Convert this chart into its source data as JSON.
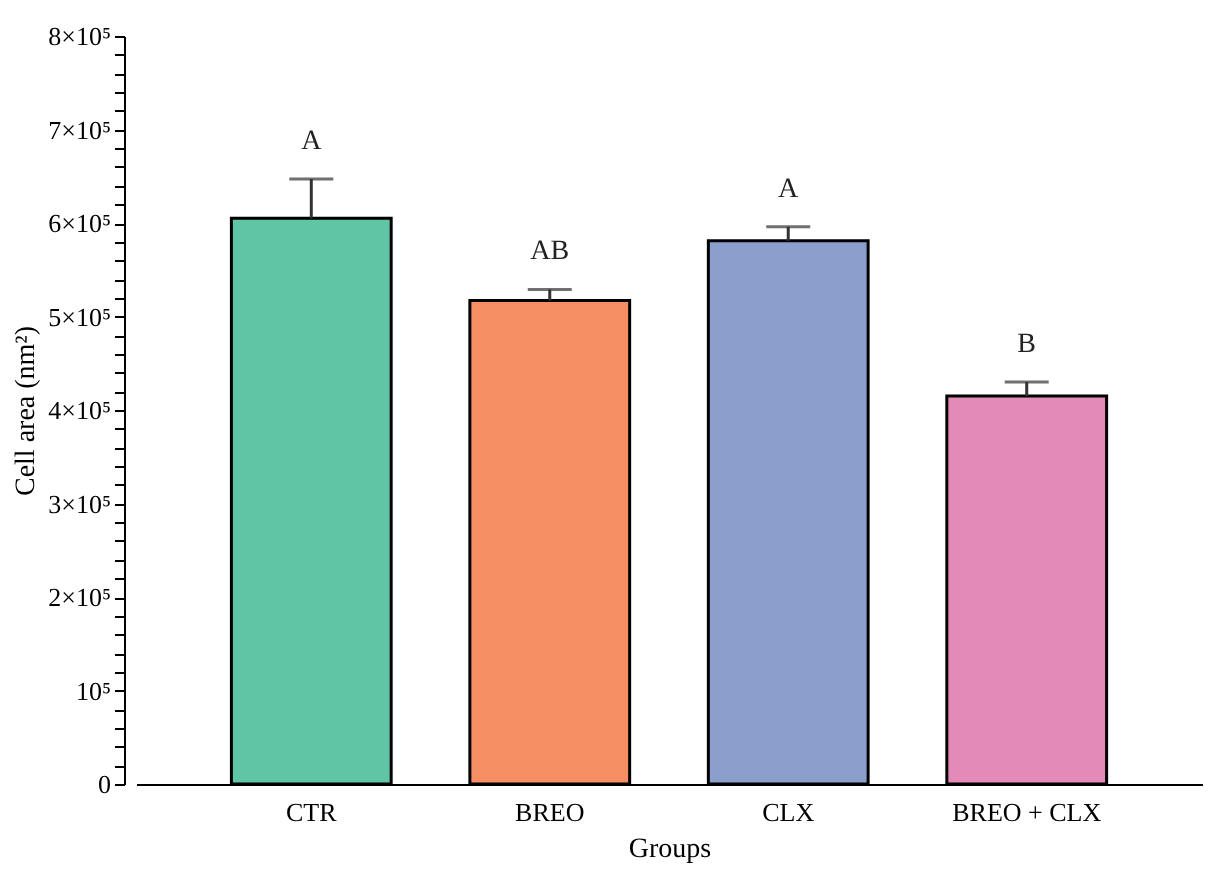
{
  "chart_data": {
    "type": "bar",
    "xlabel": "Groups",
    "ylabel": "Cell area (nm²)",
    "categories": [
      "CTR",
      "BREO",
      "CLX",
      "BREO + CLX"
    ],
    "values": [
      605000,
      517000,
      581000,
      415000
    ],
    "colors": [
      "#5fc5a5",
      "#f68e64",
      "#8a9fcb",
      "#e38ab8"
    ],
    "errors": [
      [
        605000,
        647000
      ],
      [
        517000,
        529000
      ],
      [
        581000,
        596000
      ],
      [
        415000,
        430000
      ]
    ],
    "annotations": [
      {
        "text": "A",
        "x": "CTR",
        "y": 647000
      },
      {
        "text": "AB",
        "x": "BREO",
        "y": 529000
      },
      {
        "text": "A",
        "x": "CLX",
        "y": 596000
      },
      {
        "text": "B",
        "x": "BREO + CLX",
        "y": 430000
      }
    ],
    "ylim": [
      0,
      800000
    ],
    "yticks": [
      0,
      {
        "value": 20000,
        "label": null
      },
      {
        "value": 40000,
        "label": null
      },
      {
        "value": 60000,
        "label": null
      },
      {
        "value": 80000,
        "label": null
      },
      {
        "value": 100000,
        "label": "10⁵"
      },
      {
        "value": 120000,
        "label": null
      },
      {
        "value": 140000,
        "label": null
      },
      {
        "value": 160000,
        "label": null
      },
      {
        "value": 180000,
        "label": null
      },
      {
        "value": 200000,
        "label": "2×10⁵"
      },
      {
        "value": 220000,
        "label": null
      },
      {
        "value": 240000,
        "label": null
      },
      {
        "value": 260000,
        "label": null
      },
      {
        "value": 280000,
        "label": null
      },
      {
        "value": 300000,
        "label": "3×10⁵"
      },
      {
        "value": 320000,
        "label": null
      },
      {
        "value": 340000,
        "label": null
      },
      {
        "value": 360000,
        "label": null
      },
      {
        "value": 380000,
        "label": null
      },
      {
        "value": 400000,
        "label": "4×10⁵"
      },
      {
        "value": 420000,
        "label": null
      },
      {
        "value": 440000,
        "label": null
      },
      {
        "value": 460000,
        "label": null
      },
      {
        "value": 480000,
        "label": null
      },
      {
        "value": 500000,
        "label": "5×10⁵"
      },
      {
        "value": 520000,
        "label": null
      },
      {
        "value": 540000,
        "label": null
      },
      {
        "value": 560000,
        "label": null
      },
      {
        "value": 580000,
        "label": null
      },
      {
        "value": 600000,
        "label": "6×10⁵"
      },
      {
        "value": 620000,
        "label": null
      },
      {
        "value": 640000,
        "label": null
      },
      {
        "value": 660000,
        "label": null
      },
      {
        "value": 680000,
        "label": null
      },
      {
        "value": 700000,
        "label": "7×10⁵"
      },
      {
        "value": 720000,
        "label": null
      },
      {
        "value": 740000,
        "label": null
      },
      {
        "value": 760000,
        "label": null
      },
      {
        "value": 780000,
        "label": null
      },
      {
        "value": 800000,
        "label": "8×10⁵"
      }
    ],
    "grid": false
  }
}
